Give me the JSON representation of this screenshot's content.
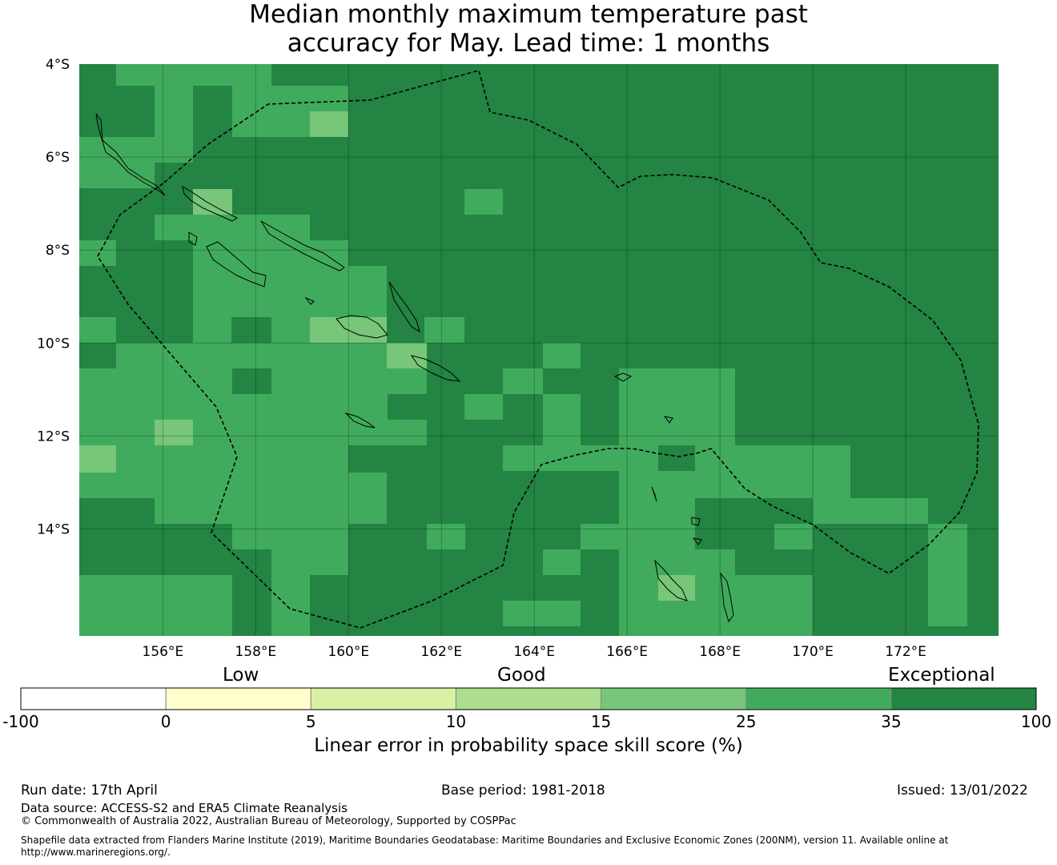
{
  "title_line1": "Median monthly maximum temperature past",
  "title_line2": "accuracy for May. Lead time: 1 months",
  "map": {
    "lon_range": [
      154.2,
      174.0
    ],
    "lat_range": [
      -4.0,
      -16.3
    ],
    "grid_step_deg": 0.833,
    "lon_ticks": [
      156,
      158,
      160,
      162,
      164,
      166,
      168,
      170,
      172
    ],
    "lon_tick_labels": [
      "156°E",
      "158°E",
      "160°E",
      "162°E",
      "164°E",
      "166°E",
      "168°E",
      "170°E",
      "172°E"
    ],
    "lat_ticks": [
      -4,
      -6,
      -8,
      -10,
      -12,
      -14
    ],
    "lat_tick_labels": [
      "4°S",
      "6°S",
      "8°S",
      "10°S",
      "12°S",
      "14°S"
    ],
    "gridlines": true,
    "region_colors": {
      "exceptional": "#238443",
      "good_high": "#41ab5d",
      "good_mid": "#78c679"
    },
    "features": [
      "land-outlines",
      "eez-boundary-dashed"
    ]
  },
  "colorbar": {
    "categories": [
      "Low",
      "Good",
      "Exceptional"
    ],
    "tick_labels": [
      "-100",
      "0",
      "5",
      "10",
      "15",
      "25",
      "35",
      "100"
    ],
    "colors": [
      "#ffffff",
      "#ffffcc",
      "#d9f0a3",
      "#addd8e",
      "#78c679",
      "#41ab5d",
      "#238443"
    ],
    "label": "Linear error in probability space skill score (%)"
  },
  "footer": {
    "run_date": "Run date: 17th April",
    "base_period": "Base period: 1981-2018",
    "issued": "Issued: 13/01/2022",
    "data_source": "Data source: ACCESS-S2 and ERA5 Climate Reanalysis",
    "copyright": "© Commonwealth of Australia 2022, Australian Bureau of Meteorology, Supported by COSPPac",
    "shapefile_line1": "Shapefile data extracted from Flanders Marine Institute (2019), Maritime Boundaries Geodatabase: Maritime Boundaries and Exclusive Economic Zones (200NM), version 11. Available online at",
    "shapefile_line2": "http://www.marineregions.org/."
  }
}
